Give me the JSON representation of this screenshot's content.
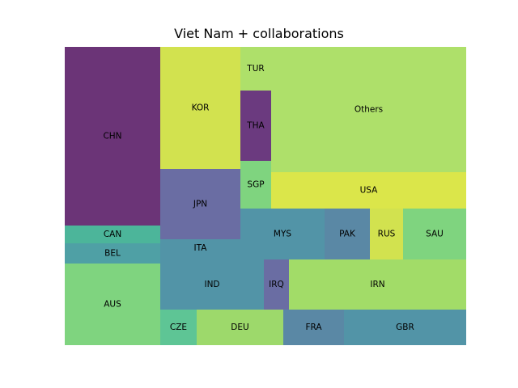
{
  "chart_data": {
    "type": "treemap",
    "title": "Viet Nam + collaborations",
    "tiles": [
      {
        "label": "CHN",
        "color": "#6b3477"
      },
      {
        "label": "CAN",
        "color": "#4cb59a"
      },
      {
        "label": "BEL",
        "color": "#4fa0a5"
      },
      {
        "label": "AUS",
        "color": "#7fd47f"
      },
      {
        "label": "KOR",
        "color": "#d2e24f"
      },
      {
        "label": "JPN",
        "color": "#6a6da3"
      },
      {
        "label": "ITA",
        "color": "#5294a7"
      },
      {
        "label": "IND",
        "color": "#5294a7"
      },
      {
        "label": "CZE",
        "color": "#5ec595"
      },
      {
        "label": "DEU",
        "color": "#9dd96b"
      },
      {
        "label": "TUR",
        "color": "#aee06a"
      },
      {
        "label": "THA",
        "color": "#6b3a7f"
      },
      {
        "label": "SGP",
        "color": "#7fd47f"
      },
      {
        "label": "Others",
        "color": "#aee06a"
      },
      {
        "label": "USA",
        "color": "#dbe64a"
      },
      {
        "label": "MYS",
        "color": "#5294a7"
      },
      {
        "label": "PAK",
        "color": "#5a88a5"
      },
      {
        "label": "RUS",
        "color": "#d2e24f"
      },
      {
        "label": "SAU",
        "color": "#7fd47f"
      },
      {
        "label": "IRQ",
        "color": "#6a6da3"
      },
      {
        "label": "IRN",
        "color": "#a2dc68"
      },
      {
        "label": "FRA",
        "color": "#5a88a5"
      },
      {
        "label": "GBR",
        "color": "#5294a7"
      }
    ]
  }
}
